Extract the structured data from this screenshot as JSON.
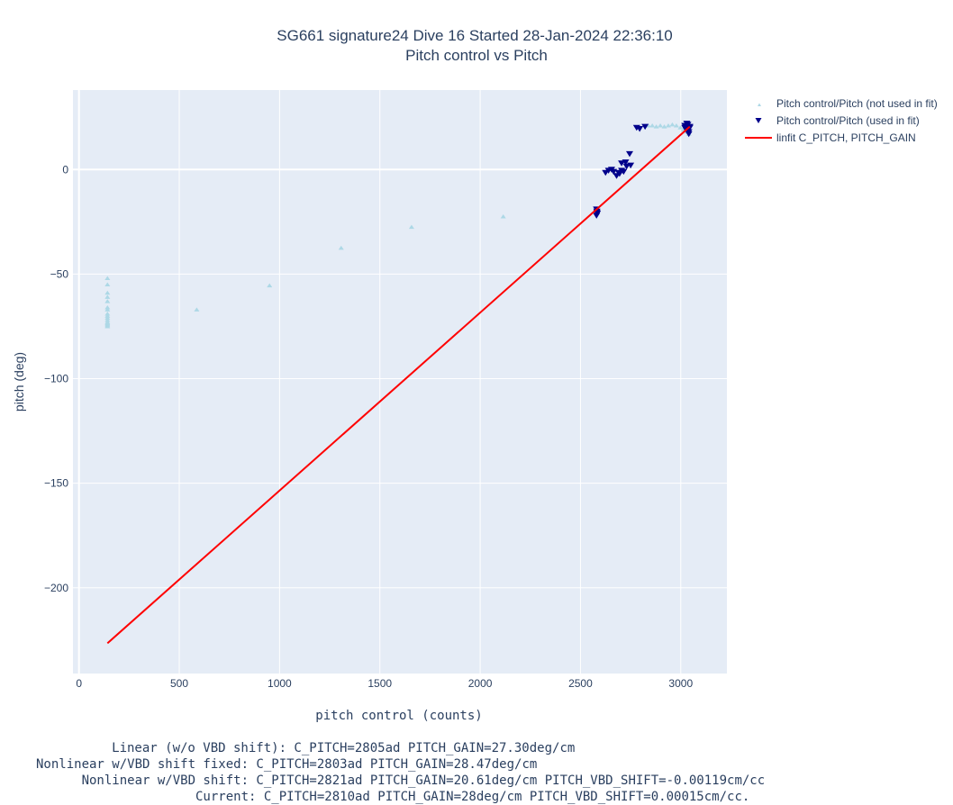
{
  "chart_data": {
    "type": "scatter",
    "title": "SG661 signature24 Dive 16 Started 28-Jan-2024 22:36:10",
    "subtitle": "Pitch control vs Pitch",
    "xlabel": "pitch control (counts)",
    "ylabel": "pitch (deg)",
    "xlim": [
      -30,
      3230
    ],
    "ylim": [
      -241,
      38
    ],
    "xticks": [
      0,
      500,
      1000,
      1500,
      2000,
      2500,
      3000
    ],
    "xtick_labels": [
      "0",
      "500",
      "1000",
      "1500",
      "2000",
      "2500",
      "3000"
    ],
    "yticks": [
      0,
      -50,
      -100,
      -150,
      -200
    ],
    "ytick_labels": [
      "0",
      "−50",
      "−100",
      "−150",
      "−200"
    ],
    "grid": true,
    "legend_placement": "top-right, outside plot",
    "series": [
      {
        "name": "Pitch control/Pitch (not used in fit)",
        "marker": "triangle-up",
        "color": "#add8e6",
        "x": [
          142,
          142,
          142,
          142,
          142,
          142,
          142,
          142,
          142,
          142,
          142,
          142,
          142,
          142,
          142,
          142,
          587,
          950,
          1307,
          1658,
          2115,
          2838,
          2858,
          2878,
          2898,
          2918,
          2938,
          2958,
          2978,
          2998,
          3012,
          3030,
          3040
        ],
        "y": [
          -52,
          -55,
          -59,
          -61,
          -63,
          -66,
          -67,
          -69,
          -70,
          -71,
          -72,
          -73,
          -73.5,
          -74,
          -74.5,
          -75,
          -67,
          -55.5,
          -37.5,
          -27.5,
          -22.5,
          21,
          21,
          20.5,
          21,
          20.5,
          21,
          21.5,
          21,
          20,
          19,
          18,
          17
        ]
      },
      {
        "name": "Pitch control/Pitch (used in fit)",
        "marker": "triangle-down",
        "color": "#00008b",
        "x": [
          2580,
          2582,
          2584,
          2580,
          2582,
          2625,
          2640,
          2655,
          2665,
          2680,
          2695,
          2705,
          2690,
          2715,
          2730,
          2745,
          2705,
          2725,
          2750,
          2780,
          2795,
          2822,
          3020,
          3030,
          3035,
          3040,
          3045,
          3030,
          3020,
          3040,
          3045,
          3035
        ],
        "y": [
          -19,
          -20,
          -21,
          -22,
          -20.5,
          -1.5,
          -0.5,
          0,
          -1,
          -3,
          -2,
          -0.5,
          -1.5,
          -1,
          1.5,
          7.5,
          3,
          3.5,
          2,
          20,
          19.5,
          20.5,
          21,
          20,
          19,
          18,
          20,
          22,
          20,
          17,
          20.5,
          21.5
        ]
      },
      {
        "name": "linfit C_PITCH, PITCH_GAIN",
        "type": "line",
        "color": "#ff0000",
        "x": [
          142,
          3045
        ],
        "y": [
          -226.5,
          20.5
        ]
      }
    ]
  },
  "notes": [
    "     Linear (w/o VBD shift): C_PITCH=2805ad PITCH_GAIN=27.30deg/cm",
    "Nonlinear w/VBD shift fixed: C_PITCH=2803ad PITCH_GAIN=28.47deg/cm",
    "      Nonlinear w/VBD shift: C_PITCH=2821ad PITCH_GAIN=20.61deg/cm PITCH_VBD_SHIFT=-0.00119cm/cc",
    "                     Current: C_PITCH=2810ad PITCH_GAIN=28deg/cm PITCH_VBD_SHIFT=0.00015cm/cc."
  ],
  "colors": {
    "plot_background": "#e5ecf6",
    "grid": "#ffffff",
    "text": "#2a3f5f"
  }
}
